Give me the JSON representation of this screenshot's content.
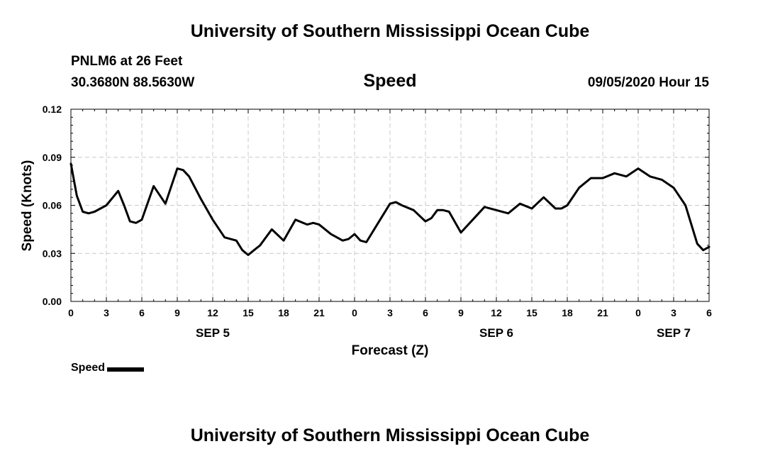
{
  "header": {
    "title": "University of Southern Mississippi Ocean Cube",
    "station": "PNLM6 at 26 Feet",
    "coords": "30.3680N 88.5630W",
    "datetime": "09/05/2020 Hour 15"
  },
  "footer": {
    "title": "University of Southern Mississippi Ocean Cube"
  },
  "chart_data": {
    "type": "line",
    "title": "Speed",
    "xlabel": "Forecast (Z)",
    "ylabel": "Speed (Knots)",
    "xlim": [
      0,
      54
    ],
    "ylim": [
      0,
      0.12
    ],
    "grid": true,
    "legend_position": "bottom-left",
    "x_ticks": [
      {
        "x": 0,
        "label": "0"
      },
      {
        "x": 3,
        "label": "3"
      },
      {
        "x": 6,
        "label": "6"
      },
      {
        "x": 9,
        "label": "9"
      },
      {
        "x": 12,
        "label": "12"
      },
      {
        "x": 15,
        "label": "15"
      },
      {
        "x": 18,
        "label": "18"
      },
      {
        "x": 21,
        "label": "21"
      },
      {
        "x": 24,
        "label": "0"
      },
      {
        "x": 27,
        "label": "3"
      },
      {
        "x": 30,
        "label": "6"
      },
      {
        "x": 33,
        "label": "9"
      },
      {
        "x": 36,
        "label": "12"
      },
      {
        "x": 39,
        "label": "15"
      },
      {
        "x": 42,
        "label": "18"
      },
      {
        "x": 45,
        "label": "21"
      },
      {
        "x": 48,
        "label": "0"
      },
      {
        "x": 51,
        "label": "3"
      },
      {
        "x": 54,
        "label": "6"
      }
    ],
    "y_ticks": [
      {
        "y": 0.0,
        "label": "0.00"
      },
      {
        "y": 0.03,
        "label": "0.03"
      },
      {
        "y": 0.06,
        "label": "0.06"
      },
      {
        "y": 0.09,
        "label": "0.09"
      },
      {
        "y": 0.12,
        "label": "0.12"
      }
    ],
    "date_labels": [
      {
        "x": 12,
        "label": "SEP 5"
      },
      {
        "x": 36,
        "label": "SEP 6"
      },
      {
        "x": 51,
        "label": "SEP 7"
      }
    ],
    "series": [
      {
        "name": "Speed",
        "color": "#000000",
        "x": [
          0,
          0.5,
          1,
          1.5,
          2,
          3,
          4,
          4.5,
          5,
          5.5,
          6,
          7,
          8,
          9,
          9.5,
          10,
          11,
          12,
          13,
          14,
          14.5,
          15,
          15.5,
          16,
          17,
          18,
          19,
          20,
          20.5,
          21,
          22,
          23,
          23.5,
          24,
          24.5,
          25,
          26,
          27,
          27.5,
          28,
          29,
          30,
          30.5,
          31,
          31.5,
          32,
          33,
          34,
          35,
          36,
          37,
          38,
          39,
          40,
          41,
          41.5,
          42,
          43,
          44,
          45,
          46,
          47,
          48,
          49,
          50,
          51,
          52,
          53,
          53.5,
          54
        ],
        "values": [
          0.086,
          0.066,
          0.056,
          0.055,
          0.056,
          0.06,
          0.069,
          0.06,
          0.05,
          0.049,
          0.051,
          0.072,
          0.061,
          0.083,
          0.082,
          0.078,
          0.064,
          0.051,
          0.04,
          0.038,
          0.032,
          0.029,
          0.032,
          0.035,
          0.045,
          0.038,
          0.051,
          0.048,
          0.049,
          0.048,
          0.042,
          0.038,
          0.039,
          0.042,
          0.038,
          0.037,
          0.049,
          0.061,
          0.062,
          0.06,
          0.057,
          0.05,
          0.052,
          0.057,
          0.057,
          0.056,
          0.043,
          0.051,
          0.059,
          0.057,
          0.055,
          0.061,
          0.058,
          0.065,
          0.058,
          0.058,
          0.06,
          0.071,
          0.077,
          0.077,
          0.08,
          0.078,
          0.083,
          0.078,
          0.076,
          0.071,
          0.06,
          0.036,
          0.032,
          0.034
        ]
      }
    ]
  }
}
